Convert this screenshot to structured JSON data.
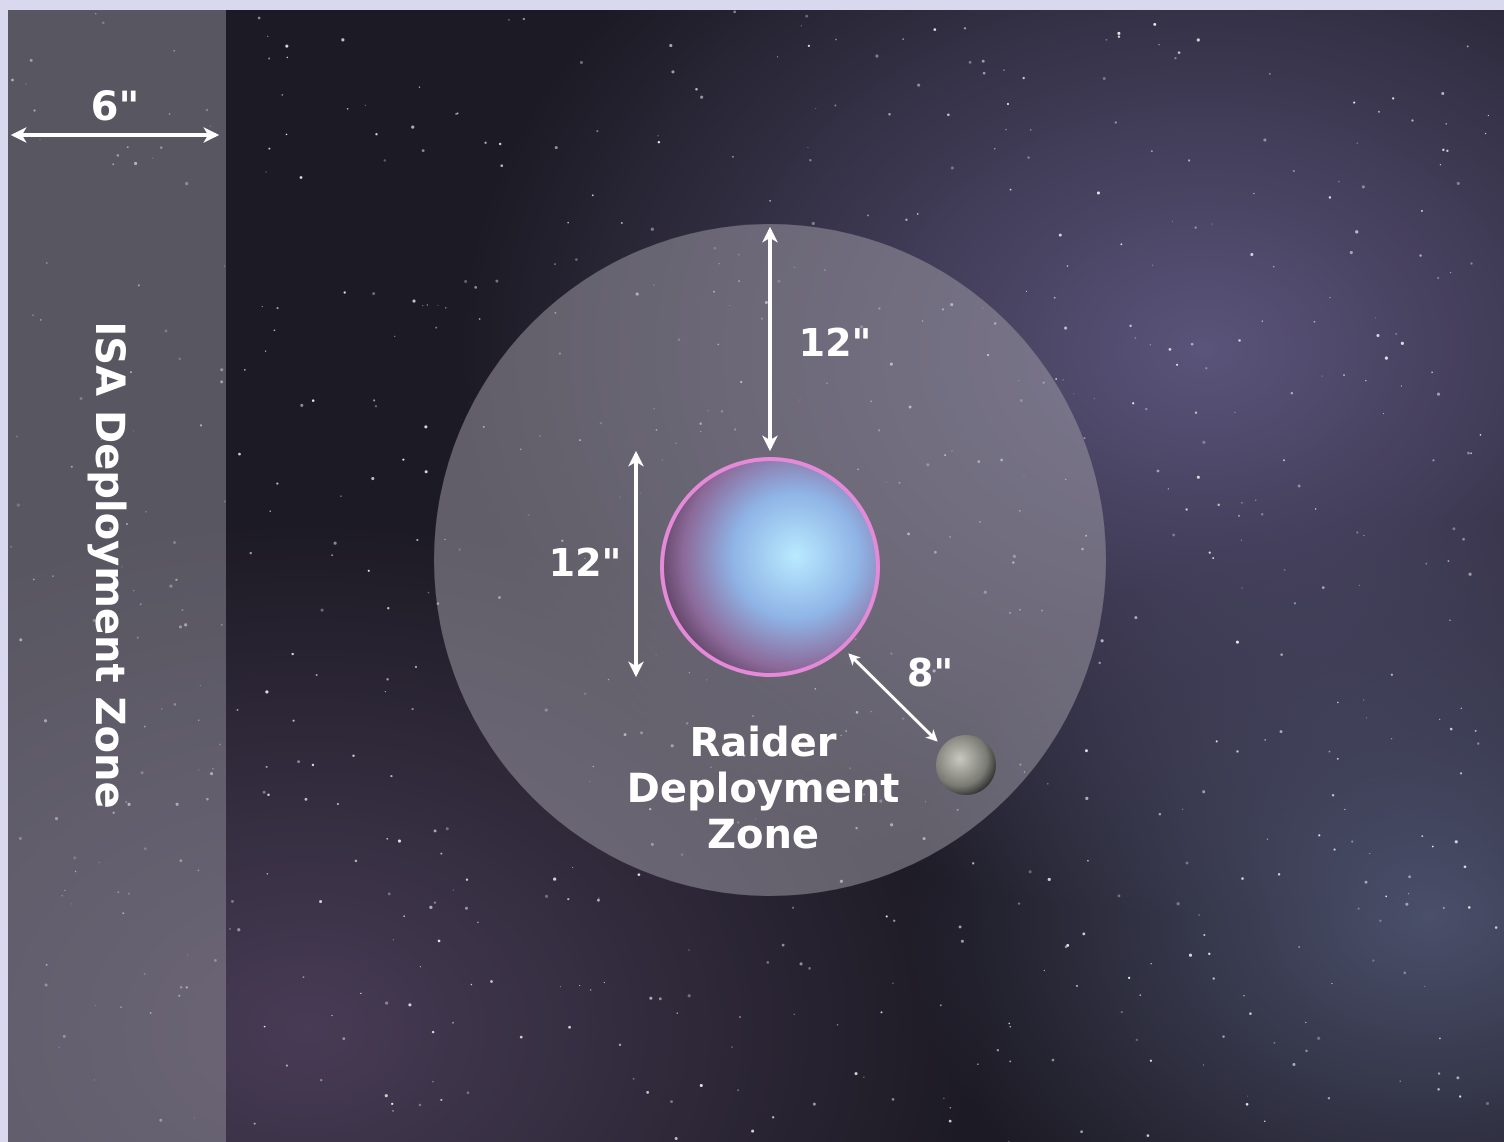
{
  "isa_zone": {
    "label": "ISA Deployment Zone",
    "width_label": "6\""
  },
  "raider_zone": {
    "label_lines": [
      "Raider",
      "Deployment",
      "Zone"
    ]
  },
  "measurements": {
    "zone_edge_to_planet": "12\"",
    "planet_diameter": "12\"",
    "planet_to_moon": "8\""
  }
}
